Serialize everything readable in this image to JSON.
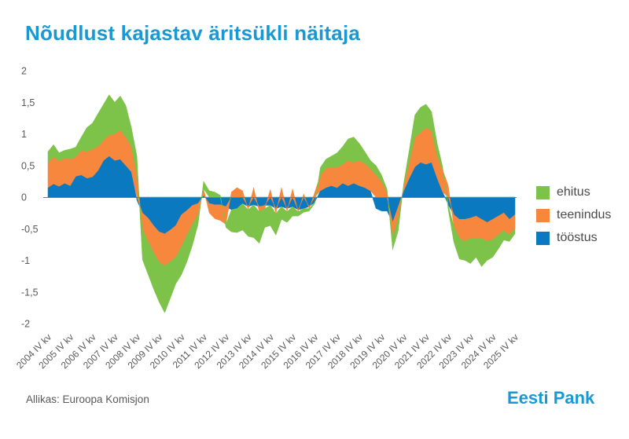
{
  "page": {
    "title": "Nõudlust kajastav äritsükli näitaja",
    "source": "Allikas: Euroopa Komisjon",
    "logo": "Eesti Pank"
  },
  "colors": {
    "title_blue": "#1899d3",
    "logo_blue": "#1899d3",
    "axis_text": "#595959",
    "legend_text": "#4a4a4a",
    "zero_line": "#7a7a7a",
    "ehitus_green": "#7dc249",
    "teenindus_orange": "#f6873c",
    "toostus_blue": "#0a79bf"
  },
  "chart_data": {
    "type": "area",
    "stacked": true,
    "title": "Nõudlust kajastav äritsükli näitaja",
    "xlabel": "",
    "ylabel": "",
    "ylim": [
      -2,
      2
    ],
    "grid": false,
    "legend_position": "right",
    "x_start": "2004 IV kv",
    "x_end": "2025 IV kv",
    "points_per_year": 4,
    "x_tick_every": 4,
    "x_tick_labels": [
      "2004 IV kv",
      "2005 IV kv",
      "2006 IV kv",
      "2007 IV kv",
      "2008 IV kv",
      "2009 IV kv",
      "2010 IV kv",
      "2011 IV kv",
      "2012 IV kv",
      "2013 IV kv",
      "2014 IV kv",
      "2015 IV kv",
      "2016 IV kv",
      "2017 IV kv",
      "2018 IV kv",
      "2019 IV kv",
      "2020 IV kv",
      "2021 IV kv",
      "2022 IV kv",
      "2023 IV kv",
      "2024 IV kv",
      "2025 IV kv"
    ],
    "y_ticks": [
      {
        "v": 2,
        "label": "2"
      },
      {
        "v": 1.5,
        "label": "1,5"
      },
      {
        "v": 1,
        "label": "1"
      },
      {
        "v": 0.5,
        "label": "0,5"
      },
      {
        "v": 0,
        "label": "0"
      },
      {
        "v": -0.5,
        "label": "-0,5"
      },
      {
        "v": -1,
        "label": "-1"
      },
      {
        "v": -1.5,
        "label": "-1,5"
      },
      {
        "v": -2,
        "label": "-2"
      }
    ],
    "stack_order": [
      "tööstus",
      "teenindus",
      "ehitus"
    ],
    "series": [
      {
        "name": "ehitus",
        "key": "ehitus",
        "color": "#7dc249",
        "values": [
          0.18,
          0.19,
          0.13,
          0.12,
          0.16,
          0.15,
          0.21,
          0.38,
          0.41,
          0.52,
          0.57,
          0.64,
          0.5,
          0.54,
          0.5,
          0.3,
          0.3,
          -0.48,
          -0.52,
          -0.57,
          -0.63,
          -0.74,
          -0.58,
          -0.42,
          -0.45,
          -0.42,
          -0.33,
          -0.15,
          0.12,
          0.1,
          0.08,
          0.03,
          -0.05,
          -0.35,
          -0.38,
          -0.42,
          -0.42,
          -0.52,
          -0.5,
          -0.3,
          -0.32,
          -0.34,
          -0.2,
          -0.17,
          -0.15,
          -0.07,
          -0.06,
          -0.04,
          -0.02,
          0.12,
          0.15,
          0.17,
          0.23,
          0.28,
          0.34,
          0.4,
          0.27,
          0.19,
          0.13,
          0.15,
          0.1,
          0.04,
          -0.18,
          -0.2,
          0.04,
          0.2,
          0.35,
          0.4,
          0.37,
          0.3,
          0.2,
          0.05,
          -0.08,
          -0.25,
          -0.33,
          -0.3,
          -0.4,
          -0.3,
          -0.45,
          -0.3,
          -0.28,
          -0.22,
          -0.15,
          -0.1,
          -0.08
        ]
      },
      {
        "name": "teenindus",
        "key": "teenindus",
        "color": "#f6873c",
        "values": [
          0.39,
          0.43,
          0.4,
          0.4,
          0.42,
          0.31,
          0.39,
          0.42,
          0.44,
          0.38,
          0.32,
          0.33,
          0.42,
          0.46,
          0.45,
          0.4,
          0.35,
          -0.26,
          -0.37,
          -0.43,
          -0.48,
          -0.51,
          -0.5,
          -0.5,
          -0.5,
          -0.39,
          -0.3,
          -0.18,
          0.1,
          -0.15,
          -0.22,
          -0.25,
          -0.28,
          0.08,
          0.15,
          0.1,
          -0.05,
          0.15,
          -0.08,
          -0.05,
          0.12,
          -0.08,
          0.15,
          -0.05,
          0.13,
          -0.03,
          0.05,
          -0.03,
          0.08,
          0.25,
          0.3,
          0.3,
          0.32,
          0.3,
          0.4,
          0.33,
          0.4,
          0.38,
          0.35,
          0.35,
          0.25,
          0.08,
          -0.25,
          -0.18,
          0.08,
          0.25,
          0.47,
          0.47,
          0.58,
          0.5,
          0.35,
          0.35,
          0.18,
          -0.18,
          -0.3,
          -0.35,
          -0.32,
          -0.35,
          -0.3,
          -0.3,
          -0.32,
          -0.3,
          -0.28,
          -0.25,
          -0.22
        ]
      },
      {
        "name": "tööstus",
        "key": "toostus",
        "color": "#0a79bf",
        "values": [
          0.15,
          0.21,
          0.17,
          0.22,
          0.18,
          0.33,
          0.35,
          0.3,
          0.32,
          0.42,
          0.58,
          0.65,
          0.58,
          0.6,
          0.5,
          0.4,
          -0.05,
          -0.25,
          -0.33,
          -0.45,
          -0.55,
          -0.58,
          -0.52,
          -0.45,
          -0.28,
          -0.21,
          -0.13,
          -0.1,
          0.03,
          -0.1,
          -0.12,
          -0.12,
          -0.15,
          -0.2,
          -0.18,
          -0.1,
          -0.15,
          -0.12,
          -0.15,
          -0.13,
          -0.13,
          -0.18,
          -0.15,
          -0.18,
          -0.15,
          -0.2,
          -0.18,
          -0.15,
          -0.08,
          0.1,
          0.15,
          0.18,
          0.15,
          0.22,
          0.18,
          0.22,
          0.18,
          0.15,
          0.1,
          -0.18,
          -0.22,
          -0.22,
          -0.4,
          -0.15,
          0.1,
          0.3,
          0.48,
          0.55,
          0.52,
          0.55,
          0.3,
          0.08,
          -0.12,
          -0.28,
          -0.35,
          -0.35,
          -0.33,
          -0.3,
          -0.35,
          -0.4,
          -0.35,
          -0.3,
          -0.25,
          -0.35,
          -0.28
        ]
      }
    ]
  }
}
